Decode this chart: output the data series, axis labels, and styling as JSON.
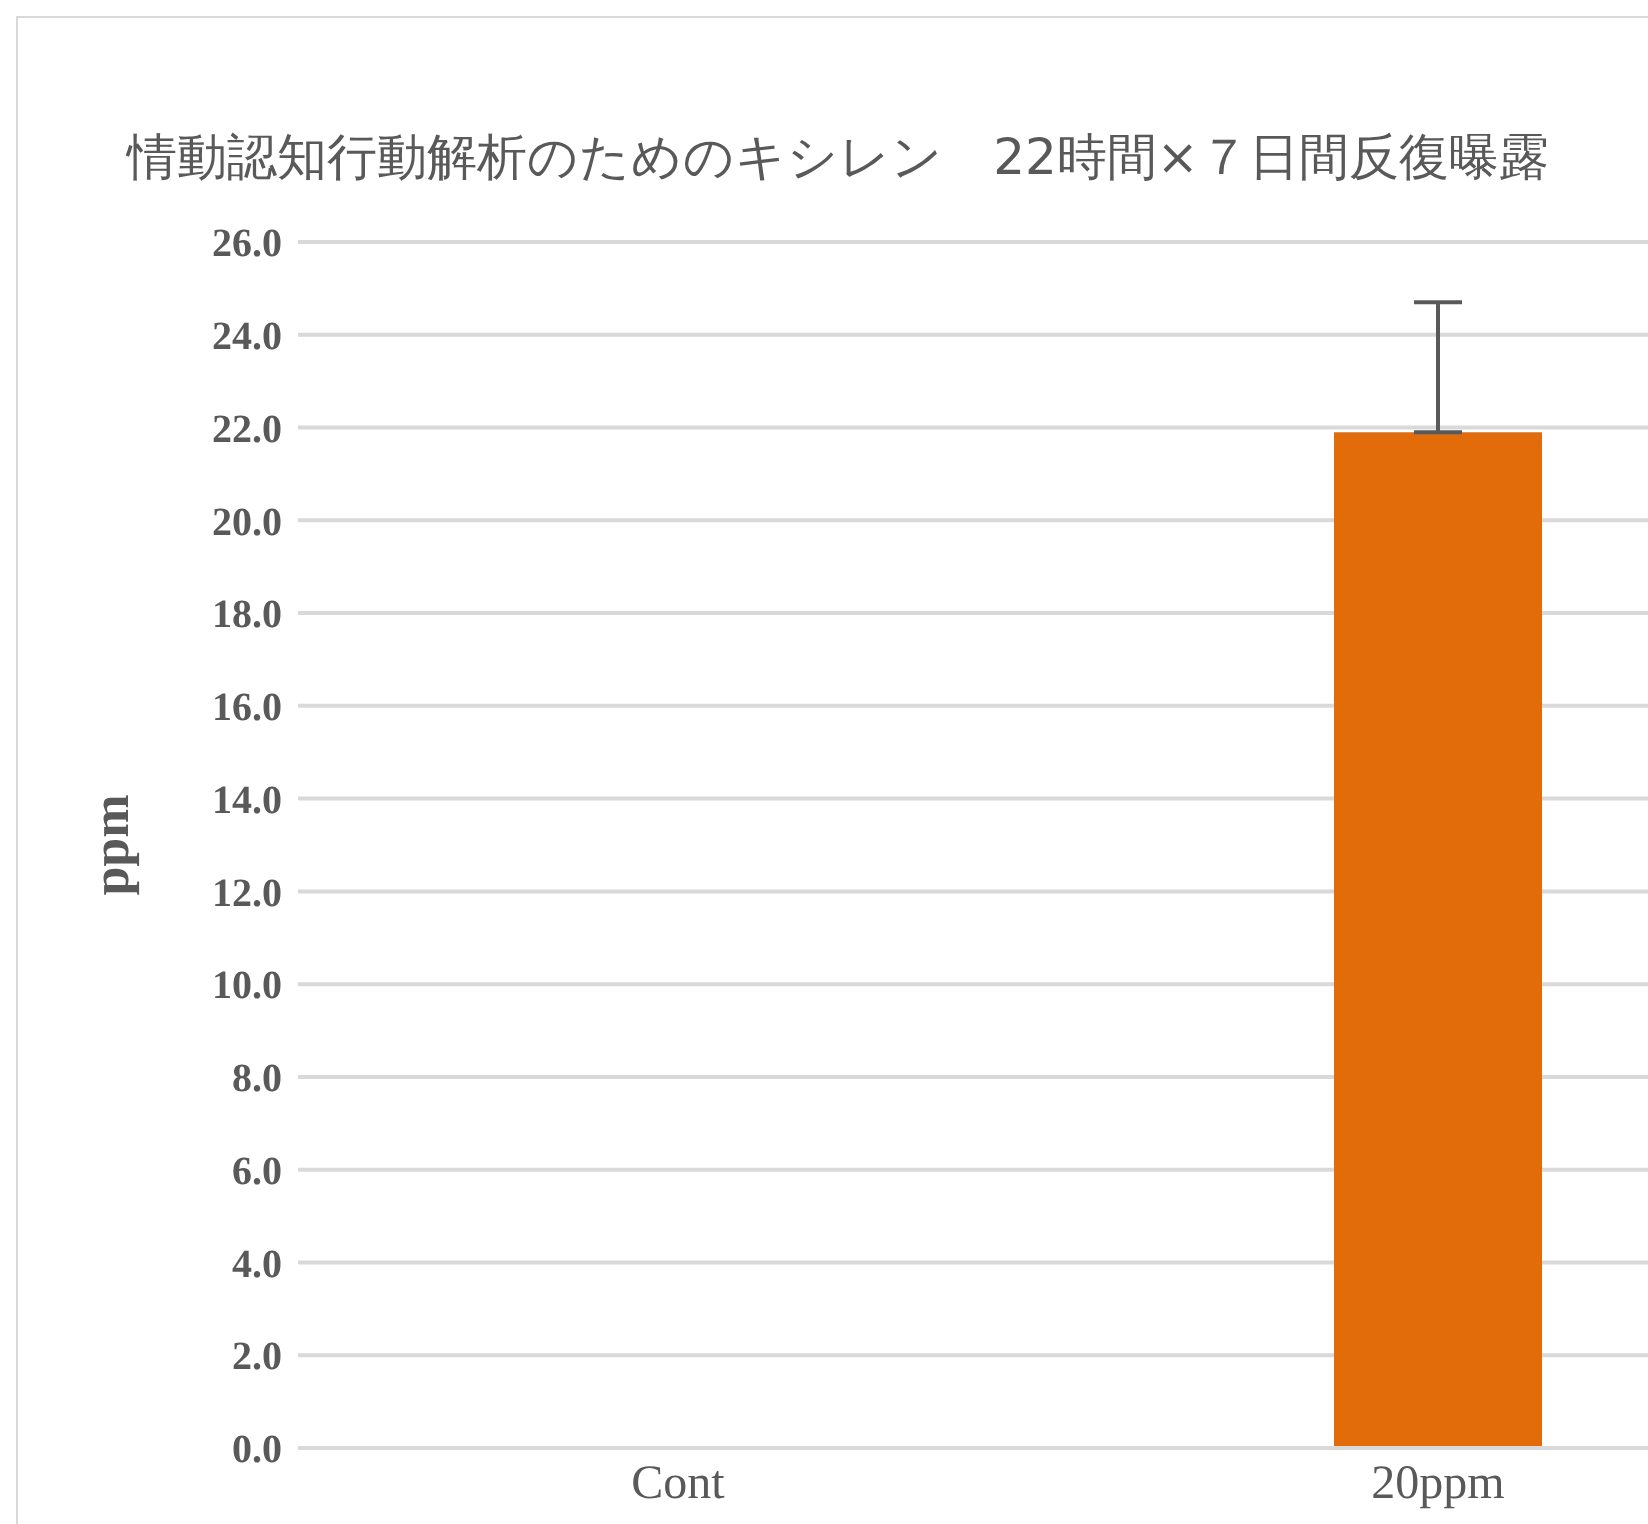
{
  "chart_data": {
    "type": "bar",
    "title": "情動認知行動解析のためのキシレン　22時間×７日間反復曝露",
    "ylabel": "ppm",
    "categories": [
      "Cont",
      "20ppm"
    ],
    "values": [
      0,
      21.9
    ],
    "errors": [
      null,
      [
        21.9,
        24.7
      ]
    ],
    "color": "#e36c0a",
    "ylim": [
      0,
      26
    ],
    "yticks": [
      {
        "value": 0,
        "label": "0.0"
      },
      {
        "value": 2,
        "label": "2.0"
      },
      {
        "value": 4,
        "label": "4.0"
      },
      {
        "value": 6,
        "label": "6.0"
      },
      {
        "value": 8,
        "label": "8.0"
      },
      {
        "value": 10,
        "label": "10.0"
      },
      {
        "value": 12,
        "label": "12.0"
      },
      {
        "value": 14,
        "label": "14.0"
      },
      {
        "value": 16,
        "label": "16.0"
      },
      {
        "value": 18,
        "label": "18.0"
      },
      {
        "value": 20,
        "label": "20.0"
      },
      {
        "value": 22,
        "label": "22.0"
      },
      {
        "value": 24,
        "label": "24.0"
      },
      {
        "value": 26,
        "label": "26.0"
      }
    ],
    "grid": "y"
  }
}
